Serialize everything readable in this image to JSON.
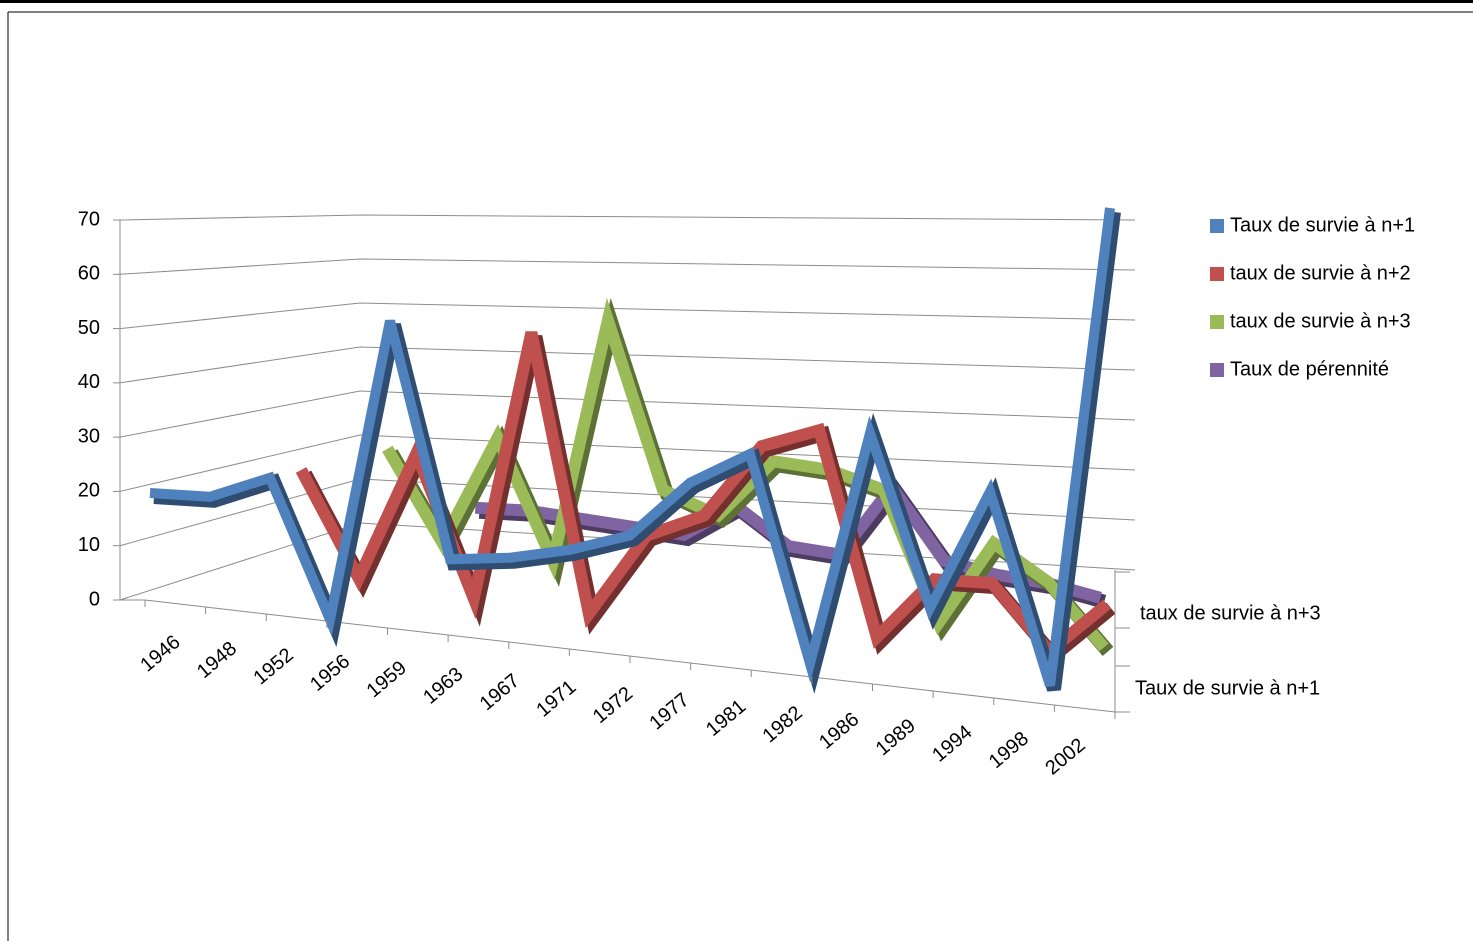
{
  "chart_data": {
    "type": "line3d",
    "categories": [
      "1946",
      "1948",
      "1952",
      "1956",
      "1959",
      "1963",
      "1967",
      "1971",
      "1972",
      "1977",
      "1981",
      "1982",
      "1986",
      "1989",
      "1994",
      "1998",
      "2002"
    ],
    "series": [
      {
        "name": "Taux de survie à n+1",
        "color": "#4f81bd",
        "values": [
          20,
          20,
          24,
          0,
          52,
          12,
          13,
          15,
          18,
          27,
          32,
          0,
          36,
          10,
          28,
          0,
          70
        ]
      },
      {
        "name": "taux de survie à n+2",
        "color": "#c0504d",
        "values": [
          null,
          null,
          24,
          5,
          28,
          3,
          50,
          2,
          16,
          20,
          32,
          35,
          2,
          12,
          12,
          2,
          10
        ]
      },
      {
        "name": "taux de survie à n+3",
        "color": "#9bbb59",
        "values": [
          null,
          null,
          null,
          27,
          10,
          30,
          8,
          52,
          22,
          18,
          28,
          27,
          24,
          2,
          16,
          10,
          0
        ]
      },
      {
        "name": "Taux de pérennité",
        "color": "#8064a2",
        "values": [
          null,
          null,
          null,
          null,
          14,
          14,
          13,
          12,
          11,
          17,
          10,
          9,
          22,
          9,
          7,
          6,
          4
        ]
      }
    ],
    "depth_labels": [
      "taux de survie à n+3",
      "Taux de survie à n+1"
    ],
    "ylim": [
      0,
      70
    ],
    "yticks": [
      0,
      10,
      20,
      30,
      40,
      50,
      60,
      70
    ],
    "grid": true,
    "legend": "right"
  }
}
